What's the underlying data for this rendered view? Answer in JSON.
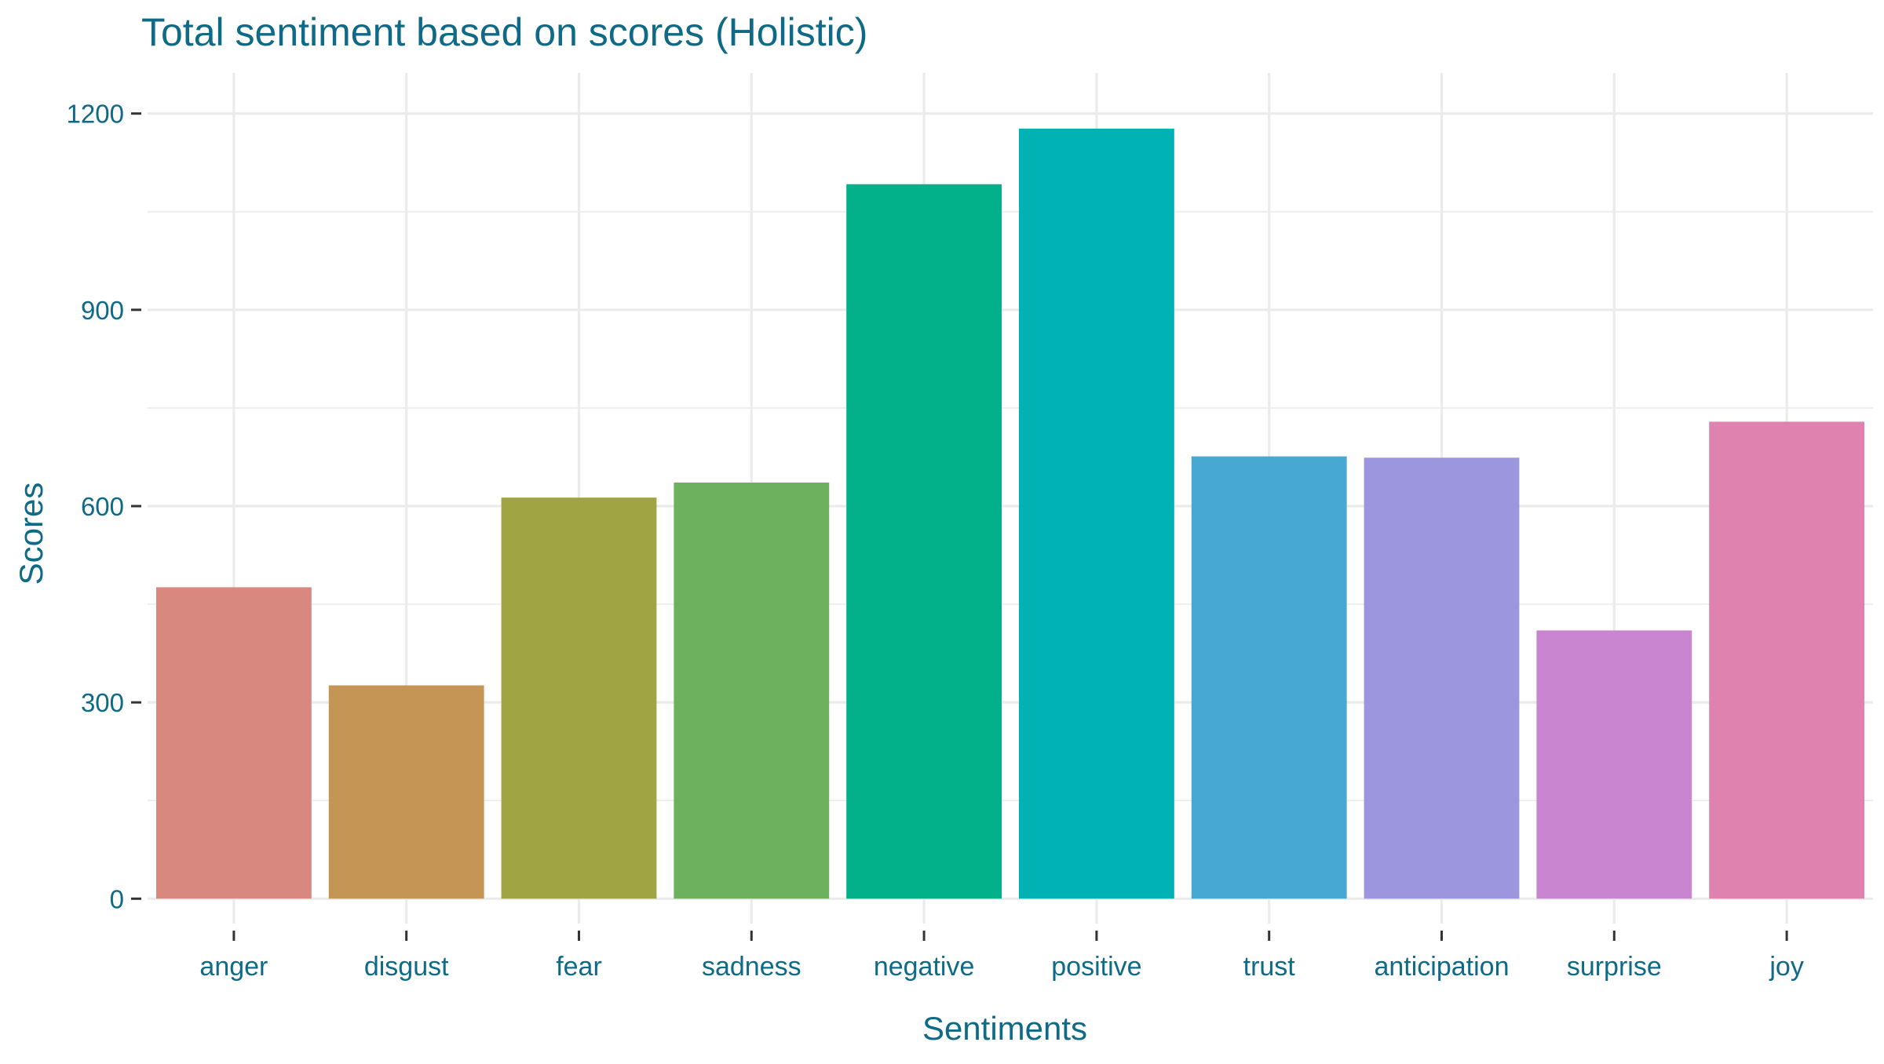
{
  "chart_data": {
    "type": "bar",
    "title": "Total sentiment based on scores (Holistic)",
    "xlabel": "Sentiments",
    "ylabel": "Scores",
    "categories": [
      "anger",
      "disgust",
      "fear",
      "sadness",
      "negative",
      "positive",
      "trust",
      "anticipation",
      "surprise",
      "joy"
    ],
    "values": [
      476,
      326,
      613,
      636,
      1092,
      1177,
      676,
      674,
      410,
      729
    ],
    "colors": [
      "#D98880",
      "#C59555",
      "#A0A443",
      "#6DB05E",
      "#02B089",
      "#01B2B4",
      "#47A8D4",
      "#9B96DE",
      "#C985CF",
      "#E082AF"
    ],
    "yticks": [
      0,
      300,
      600,
      900,
      1200
    ],
    "ylim": [
      -38,
      1262
    ],
    "grid": true,
    "legend": "none",
    "text_color": "#0E6A86",
    "grid_color": "#EBEBEB"
  }
}
